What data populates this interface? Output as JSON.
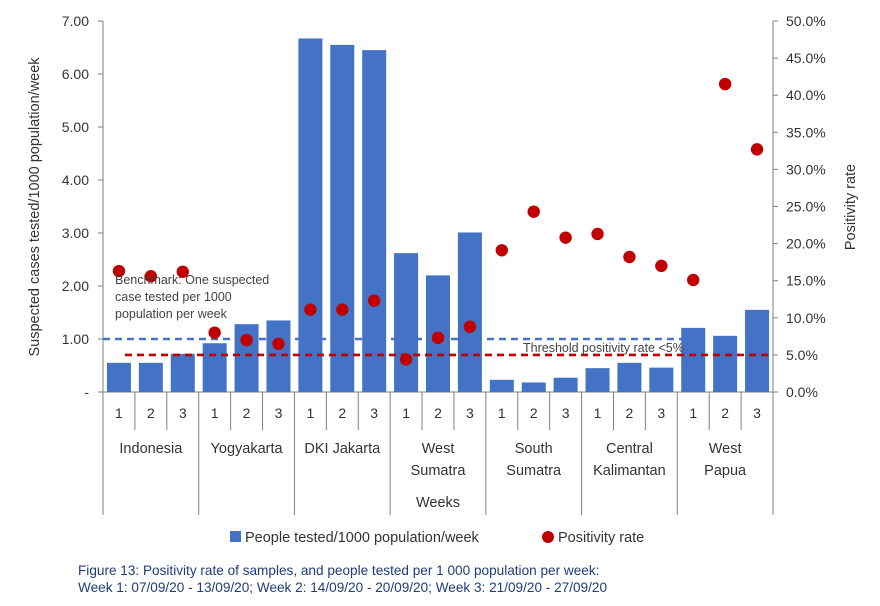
{
  "chart_data": {
    "type": "bar",
    "title": "",
    "xlabel": "Weeks",
    "ylabel": "Suspected cases tested/1000 population/week",
    "y2label": "Positivity rate",
    "ylim": [
      0,
      7
    ],
    "y2lim": [
      0,
      0.5
    ],
    "yticks": [
      "-",
      "1.00",
      "2.00",
      "3.00",
      "4.00",
      "5.00",
      "6.00",
      "7.00"
    ],
    "y2ticks": [
      "0.0%",
      "5.0%",
      "10.0%",
      "15.0%",
      "20.0%",
      "25.0%",
      "30.0%",
      "35.0%",
      "40.0%",
      "45.0%",
      "50.0%"
    ],
    "week_labels": [
      "1",
      "2",
      "3"
    ],
    "groups": [
      {
        "name_lines": [
          "Indonesia"
        ],
        "tested": [
          0.55,
          0.55,
          0.72
        ],
        "positivity": [
          0.163,
          0.156,
          0.162
        ]
      },
      {
        "name_lines": [
          "Yogyakarta"
        ],
        "tested": [
          0.92,
          1.28,
          1.35
        ],
        "positivity": [
          0.08,
          0.07,
          0.065
        ]
      },
      {
        "name_lines": [
          "DKI Jakarta"
        ],
        "tested": [
          6.67,
          6.55,
          6.45
        ],
        "positivity": [
          0.111,
          0.111,
          0.123
        ]
      },
      {
        "name_lines": [
          "West",
          "Sumatra"
        ],
        "tested": [
          2.62,
          2.2,
          3.01
        ],
        "positivity": [
          0.044,
          0.073,
          0.088
        ]
      },
      {
        "name_lines": [
          "South",
          "Sumatra"
        ],
        "tested": [
          0.23,
          0.18,
          0.27
        ],
        "positivity": [
          0.191,
          0.243,
          0.208
        ]
      },
      {
        "name_lines": [
          "Central",
          "Kalimantan"
        ],
        "tested": [
          0.45,
          0.55,
          0.46
        ],
        "positivity": [
          0.213,
          0.182,
          0.17
        ]
      },
      {
        "name_lines": [
          "West",
          "Papua"
        ],
        "tested": [
          1.21,
          1.06,
          1.55
        ],
        "positivity": [
          0.151,
          0.415,
          0.327
        ]
      }
    ],
    "benchmark": {
      "value": 1.0,
      "text_lines": [
        "Benchmark: One suspected",
        "case tested per 1000",
        "population per week"
      ]
    },
    "threshold": {
      "value": 0.05,
      "text": "Threshold positivity rate <5%"
    },
    "legend": [
      {
        "label": "People tested/1000 population/week",
        "kind": "bar"
      },
      {
        "label": "Positivity rate",
        "kind": "dot"
      }
    ],
    "colors": {
      "bar": "#4472C4",
      "dot": "#C00000",
      "benchmark": "#4472C4",
      "threshold": "#C00000"
    }
  },
  "caption": {
    "line1": "Figure 13: Positivity rate of samples, and people tested per 1 000 population per week:",
    "line2": "Week 1: 07/09/20 - 13/09/20; Week 2: 14/09/20 - 20/09/20; Week 3: 21/09/20 - 27/09/20"
  }
}
